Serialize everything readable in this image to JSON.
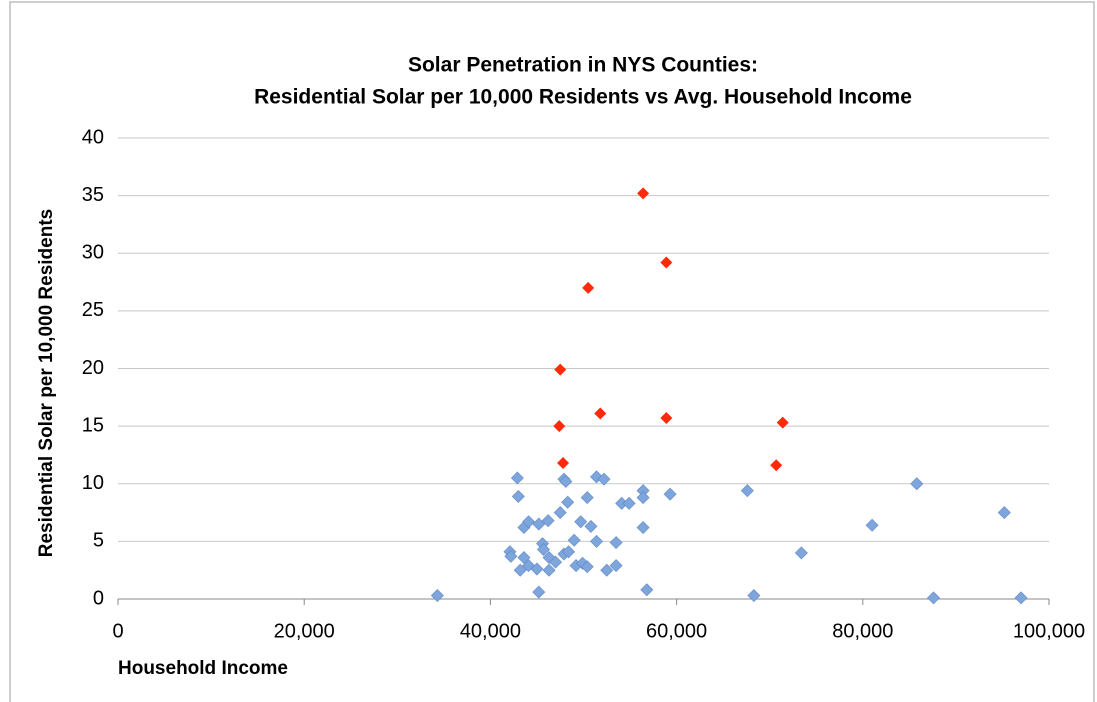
{
  "chart_data": {
    "type": "scatter",
    "title": [
      "Solar Penetration in NYS Counties:",
      "Residential Solar per 10,000 Residents vs Avg. Household Income"
    ],
    "xlabel": "Household Income",
    "ylabel": "Residential Solar per 10,000 Residents",
    "xlim": [
      0,
      100000
    ],
    "xticks": [
      0,
      {
        "value": 20000,
        "label": "20,000"
      },
      {
        "value": 40000,
        "label": "40,000"
      },
      {
        "value": 60000,
        "label": "60,000"
      },
      {
        "value": 80000,
        "label": "80,000"
      },
      {
        "value": 100000,
        "label": "100,000"
      }
    ],
    "ylim": [
      0,
      40
    ],
    "yticks": [
      0,
      5,
      10,
      15,
      20,
      25,
      30,
      35,
      40
    ],
    "grid": true,
    "series": [
      {
        "color": "#7ea6dc",
        "x": [
          34300,
          42900,
          43000,
          42100,
          42200,
          43200,
          43600,
          44100,
          43600,
          44100,
          45000,
          45200,
          45200,
          45600,
          45700,
          46200,
          46300,
          46300,
          47000,
          47500,
          47900,
          48400,
          47900,
          48100,
          48300,
          49000,
          49200,
          49700,
          49900,
          50400,
          50400,
          50800,
          51400,
          51400,
          52200,
          52500,
          53500,
          53500,
          54100,
          54900,
          56400,
          56400,
          56400,
          56800,
          59300,
          67600,
          68300,
          73400,
          81000,
          85800,
          87600,
          95200,
          97000
        ],
        "values": [
          0.3,
          10.5,
          8.9,
          4.1,
          3.7,
          2.5,
          3.6,
          2.9,
          6.2,
          6.7,
          2.6,
          6.5,
          0.6,
          4.8,
          4.3,
          6.8,
          3.6,
          2.5,
          3.2,
          7.5,
          3.9,
          4.1,
          10.4,
          10.2,
          8.4,
          5.1,
          2.9,
          6.7,
          3.1,
          2.8,
          8.8,
          6.3,
          5.0,
          10.6,
          10.4,
          2.5,
          4.9,
          2.9,
          8.3,
          8.3,
          9.4,
          8.8,
          6.2,
          0.8,
          9.1,
          9.4,
          0.3,
          4.0,
          6.4,
          10.0,
          0.1,
          7.5,
          0.1
        ]
      },
      {
        "color": "#ff2a0a",
        "x": [
          56400,
          58900,
          50500,
          47500,
          51800,
          58900,
          47400,
          71400,
          47800,
          70700
        ],
        "values": [
          35.2,
          29.2,
          27.0,
          19.9,
          16.1,
          15.7,
          15.0,
          15.3,
          11.8,
          11.6
        ]
      }
    ]
  }
}
